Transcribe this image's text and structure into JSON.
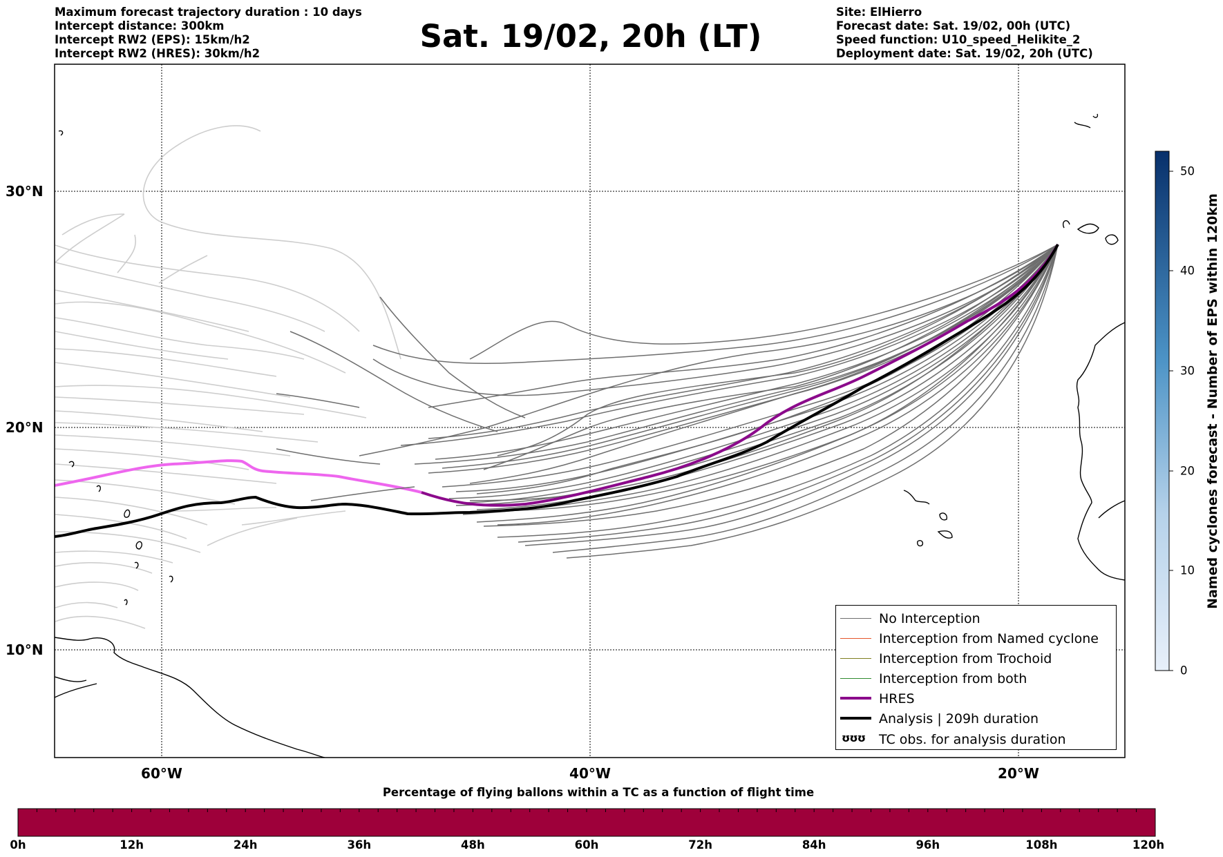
{
  "header": {
    "left": [
      "Maximum forecast trajectory duration : 10 days",
      "Intercept distance: 300km",
      "Intercept RW2 (EPS):  15km/h2",
      "Intercept RW2 (HRES): 30km/h2"
    ],
    "title": "Sat. 19/02, 20h (LT)",
    "right": [
      "Site: ElHierro",
      "Forecast date: Sat. 19/02, 00h (UTC)",
      "Speed function: U10_speed_Helikite_2",
      "Deployment date: Sat. 19/02, 20h (UTC)"
    ]
  },
  "map": {
    "lon_range": [
      -65,
      -15
    ],
    "lat_range": [
      5,
      35
    ],
    "lon_labels": [
      {
        "lon": -60,
        "text": "60°W"
      },
      {
        "lon": -40,
        "text": "40°W"
      },
      {
        "lon": -20,
        "text": "20°W"
      }
    ],
    "lat_labels": [
      {
        "lat": 30,
        "text": "30°N"
      },
      {
        "lat": 20,
        "text": "20°N"
      },
      {
        "lat": 10,
        "text": "10°N"
      }
    ],
    "colors": {
      "no_interception": "#6e6e6e",
      "faded_track": "#cdcdcd",
      "named_cyclone": "#e4542a",
      "trochoid": "#7f7f1f",
      "both": "#2e8b2e",
      "hres": "#8b0a8b",
      "hres_faded": "#ee66ee",
      "analysis": "#000000"
    }
  },
  "legend": {
    "items": [
      {
        "label": "No Interception",
        "color": "#6e6e6e",
        "width": 1.5
      },
      {
        "label": "Interception from Named cyclone",
        "color": "#e4542a",
        "width": 1.5
      },
      {
        "label": "Interception from Trochoid",
        "color": "#7f7f1f",
        "width": 1.5
      },
      {
        "label": "Interception from both",
        "color": "#2e8b2e",
        "width": 1.5
      },
      {
        "label": "HRES",
        "color": "#8b0a8b",
        "width": 4
      },
      {
        "label": "Analysis | 209h duration",
        "color": "#000000",
        "width": 4
      }
    ],
    "tc_item": {
      "label": "TC obs. for analysis duration",
      "icon": "tc-symbol-icon",
      "symbol": "ʊʊʊ"
    }
  },
  "right_colorbar": {
    "title": "Named cyclones forecast - Number of EPS within 120km",
    "min": 0,
    "max": 52,
    "ticks": [
      0,
      10,
      20,
      30,
      40,
      50
    ],
    "color_low": "#e8f0fa",
    "color_high": "#08306b"
  },
  "bottom_colorbar": {
    "title": "Percentage of flying ballons within a TC as a function of flight time",
    "hours": [
      "0h",
      "12h",
      "24h",
      "36h",
      "48h",
      "60h",
      "72h",
      "84h",
      "96h",
      "108h",
      "120h"
    ],
    "color": "#9e003a"
  }
}
